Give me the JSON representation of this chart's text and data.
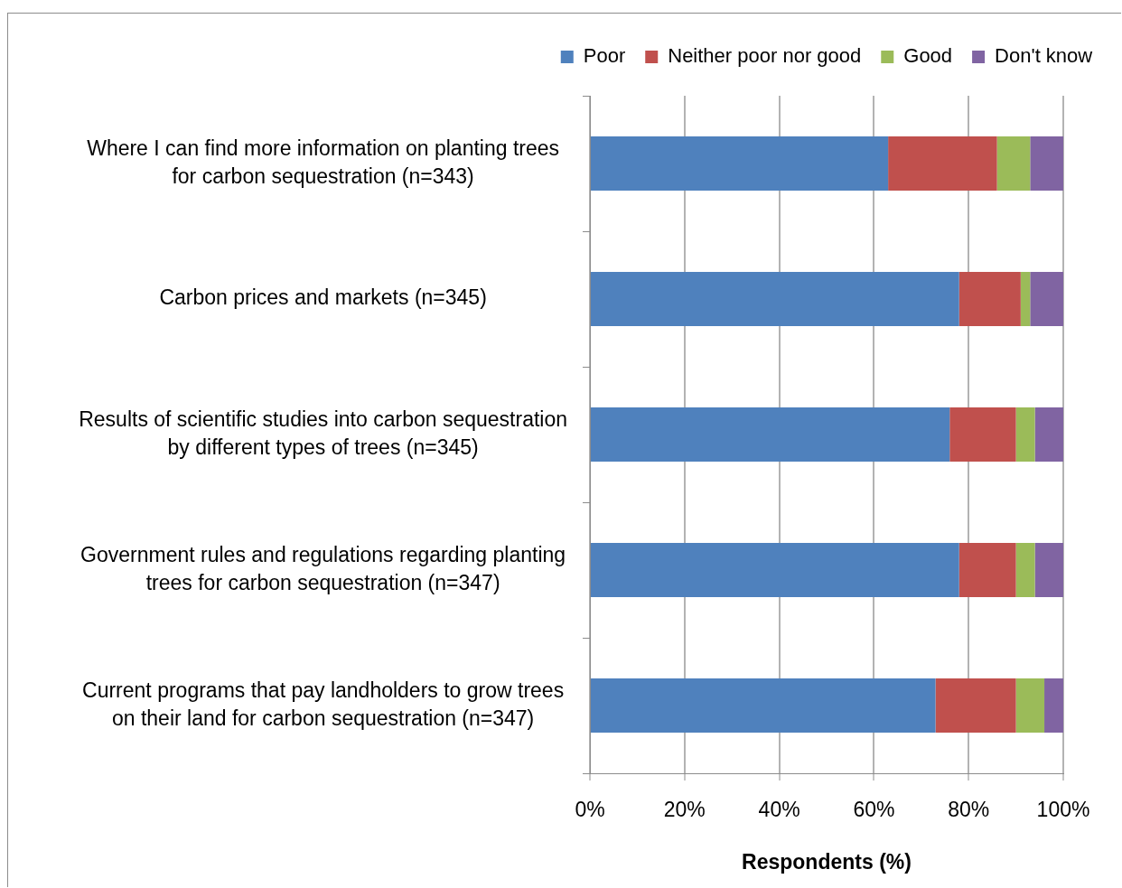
{
  "chart_data": {
    "type": "bar",
    "orientation": "horizontal",
    "stacked": true,
    "categories": [
      "Where I can find more information on planting trees for carbon sequestration (n=343)",
      "Carbon prices and markets (n=345)",
      "Results of scientific studies into carbon sequestration by different types of trees (n=345)",
      "Government rules and regulations regarding planting trees for carbon sequestration (n=347)",
      "Current programs that pay landholders to grow trees on their land for carbon sequestration (n=347)"
    ],
    "series": [
      {
        "name": "Poor",
        "color": "#4f81bd",
        "values": [
          63,
          78,
          76,
          78,
          73
        ]
      },
      {
        "name": "Neither poor nor good",
        "color": "#c0504d",
        "values": [
          23,
          13,
          14,
          12,
          17
        ]
      },
      {
        "name": "Good",
        "color": "#9bbb59",
        "values": [
          7,
          2,
          4,
          4,
          6
        ]
      },
      {
        "name": "Don't know",
        "color": "#8064a2",
        "values": [
          7,
          7,
          6,
          6,
          4
        ]
      }
    ],
    "xlabel": "Respondents (%)",
    "xlim": [
      0,
      100
    ],
    "xticks": [
      {
        "value": 0,
        "label": "0%"
      },
      {
        "value": 20,
        "label": "20%"
      },
      {
        "value": 40,
        "label": "40%"
      },
      {
        "value": 60,
        "label": "60%"
      },
      {
        "value": 80,
        "label": "80%"
      },
      {
        "value": 100,
        "label": "100%"
      }
    ],
    "grid": "x",
    "legend": "top"
  }
}
